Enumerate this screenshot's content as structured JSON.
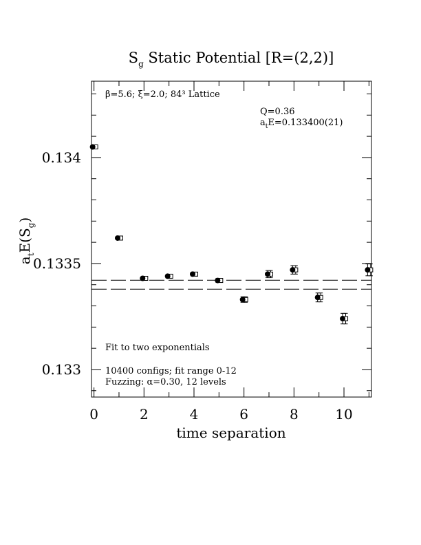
{
  "chart_data": {
    "type": "scatter",
    "title": {
      "main": "S",
      "sub": "g",
      "rest": " Static Potential [R=(2,2)]"
    },
    "xlabel": "time separation",
    "ylabel": {
      "main": "a",
      "sub1": "t",
      "mid": "E(S",
      "sub2": "g",
      "end": ")"
    },
    "xlim": [
      -0.1,
      11.1
    ],
    "ylim": [
      0.13287,
      0.13436
    ],
    "xticks": [
      0,
      2,
      4,
      6,
      8,
      10
    ],
    "xtick_labels": [
      "0",
      "2",
      "4",
      "6",
      "8",
      "10"
    ],
    "yticks": [
      0.133,
      0.1335,
      0.134
    ],
    "ytick_labels": [
      "0.133",
      "0.1335",
      "0.134"
    ],
    "annotations": {
      "lattice": "β=5.6; ξ=2.0; 84³ Lattice",
      "q": "Q=0.36",
      "energy": {
        "a": "a",
        "sub": "t",
        "rest": "E=0.133400(21)"
      },
      "fit": "Fit to two exponentials",
      "configs": "10400 configs; fit range 0-12",
      "fuzzing": "Fuzzing: α=0.30, 12 levels"
    },
    "fit_band": {
      "center": 0.1334,
      "error": 2.1e-05
    },
    "series": [
      {
        "marker": "filled-circle",
        "x": [
          0,
          1,
          2,
          3,
          4,
          5,
          6,
          7,
          8,
          9,
          10,
          11
        ],
        "y": [
          0.13405,
          0.13362,
          0.13343,
          0.13344,
          0.13345,
          0.13342,
          0.13333,
          0.13345,
          0.13347,
          0.13334,
          0.13324,
          0.13347
        ],
        "err": [
          4e-06,
          5e-06,
          6e-06,
          8e-06,
          9e-06,
          9e-06,
          1.3e-05,
          1.7e-05,
          2e-05,
          2.1e-05,
          2.5e-05,
          2.8e-05
        ]
      },
      {
        "marker": "open-square",
        "x": [
          0,
          1,
          2,
          3,
          4,
          5,
          6,
          7,
          8,
          9,
          10,
          11
        ],
        "y": [
          0.13405,
          0.13362,
          0.13343,
          0.13344,
          0.13345,
          0.13342,
          0.13333,
          0.13345,
          0.13347,
          0.13334,
          0.13324,
          0.13347
        ],
        "err": [
          4e-06,
          5e-06,
          6e-06,
          8e-06,
          9e-06,
          9e-06,
          1.3e-05,
          1.7e-05,
          2e-05,
          2.1e-05,
          2.5e-05,
          2.8e-05
        ]
      }
    ]
  }
}
